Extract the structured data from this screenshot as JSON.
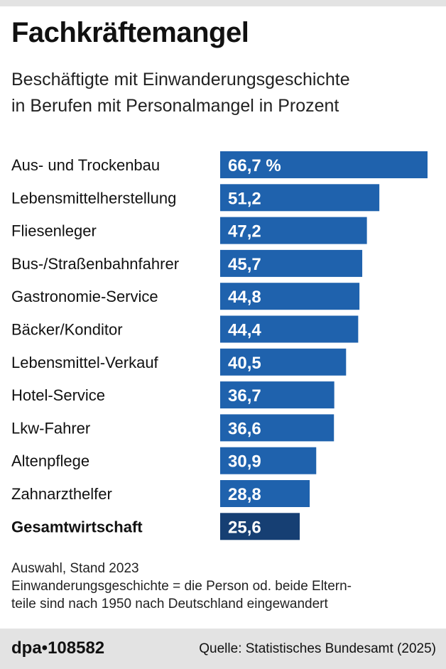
{
  "header": {
    "title": "Fachkräftemangel",
    "subtitle_line1": "Beschäftigte mit Einwanderungsgeschichte",
    "subtitle_line2": "in Berufen mit Personalmangel in Prozent"
  },
  "chart_data": {
    "type": "bar",
    "orientation": "horizontal",
    "categories": [
      "Aus- und Trockenbau",
      "Lebensmittelherstellung",
      "Fliesenleger",
      "Bus-/Straßenbahnfahrer",
      "Gastronomie-Service",
      "Bäcker/Konditor",
      "Lebensmittel-Verkauf",
      "Hotel-Service",
      "Lkw-Fahrer",
      "Altenpflege",
      "Zahnarzthelfer",
      "Gesamtwirtschaft"
    ],
    "values": [
      66.7,
      51.2,
      47.2,
      45.7,
      44.8,
      44.4,
      40.5,
      36.7,
      36.6,
      30.9,
      28.8,
      25.6
    ],
    "value_labels": [
      "66,7 %",
      "51,2",
      "47,2",
      "45,7",
      "44,8",
      "44,4",
      "40,5",
      "36,7",
      "36,6",
      "30,9",
      "28,8",
      "25,6"
    ],
    "highlight_category": "Gesamtwirtschaft",
    "colors": {
      "bar": "#1f62ad",
      "highlight": "#163f73",
      "label": "#ffffff"
    },
    "xlim": [
      0,
      66.7
    ],
    "grid": false,
    "legend": "none"
  },
  "notes": {
    "line1": "Auswahl, Stand 2023",
    "line2": "Einwanderungsgeschichte = die Person od. beide Eltern-",
    "line3": "teile sind nach 1950 nach Deutschland eingewandert"
  },
  "footer": {
    "logo": "dpa•108582",
    "source": "Quelle: Statistisches Bundesamt (2025)"
  }
}
